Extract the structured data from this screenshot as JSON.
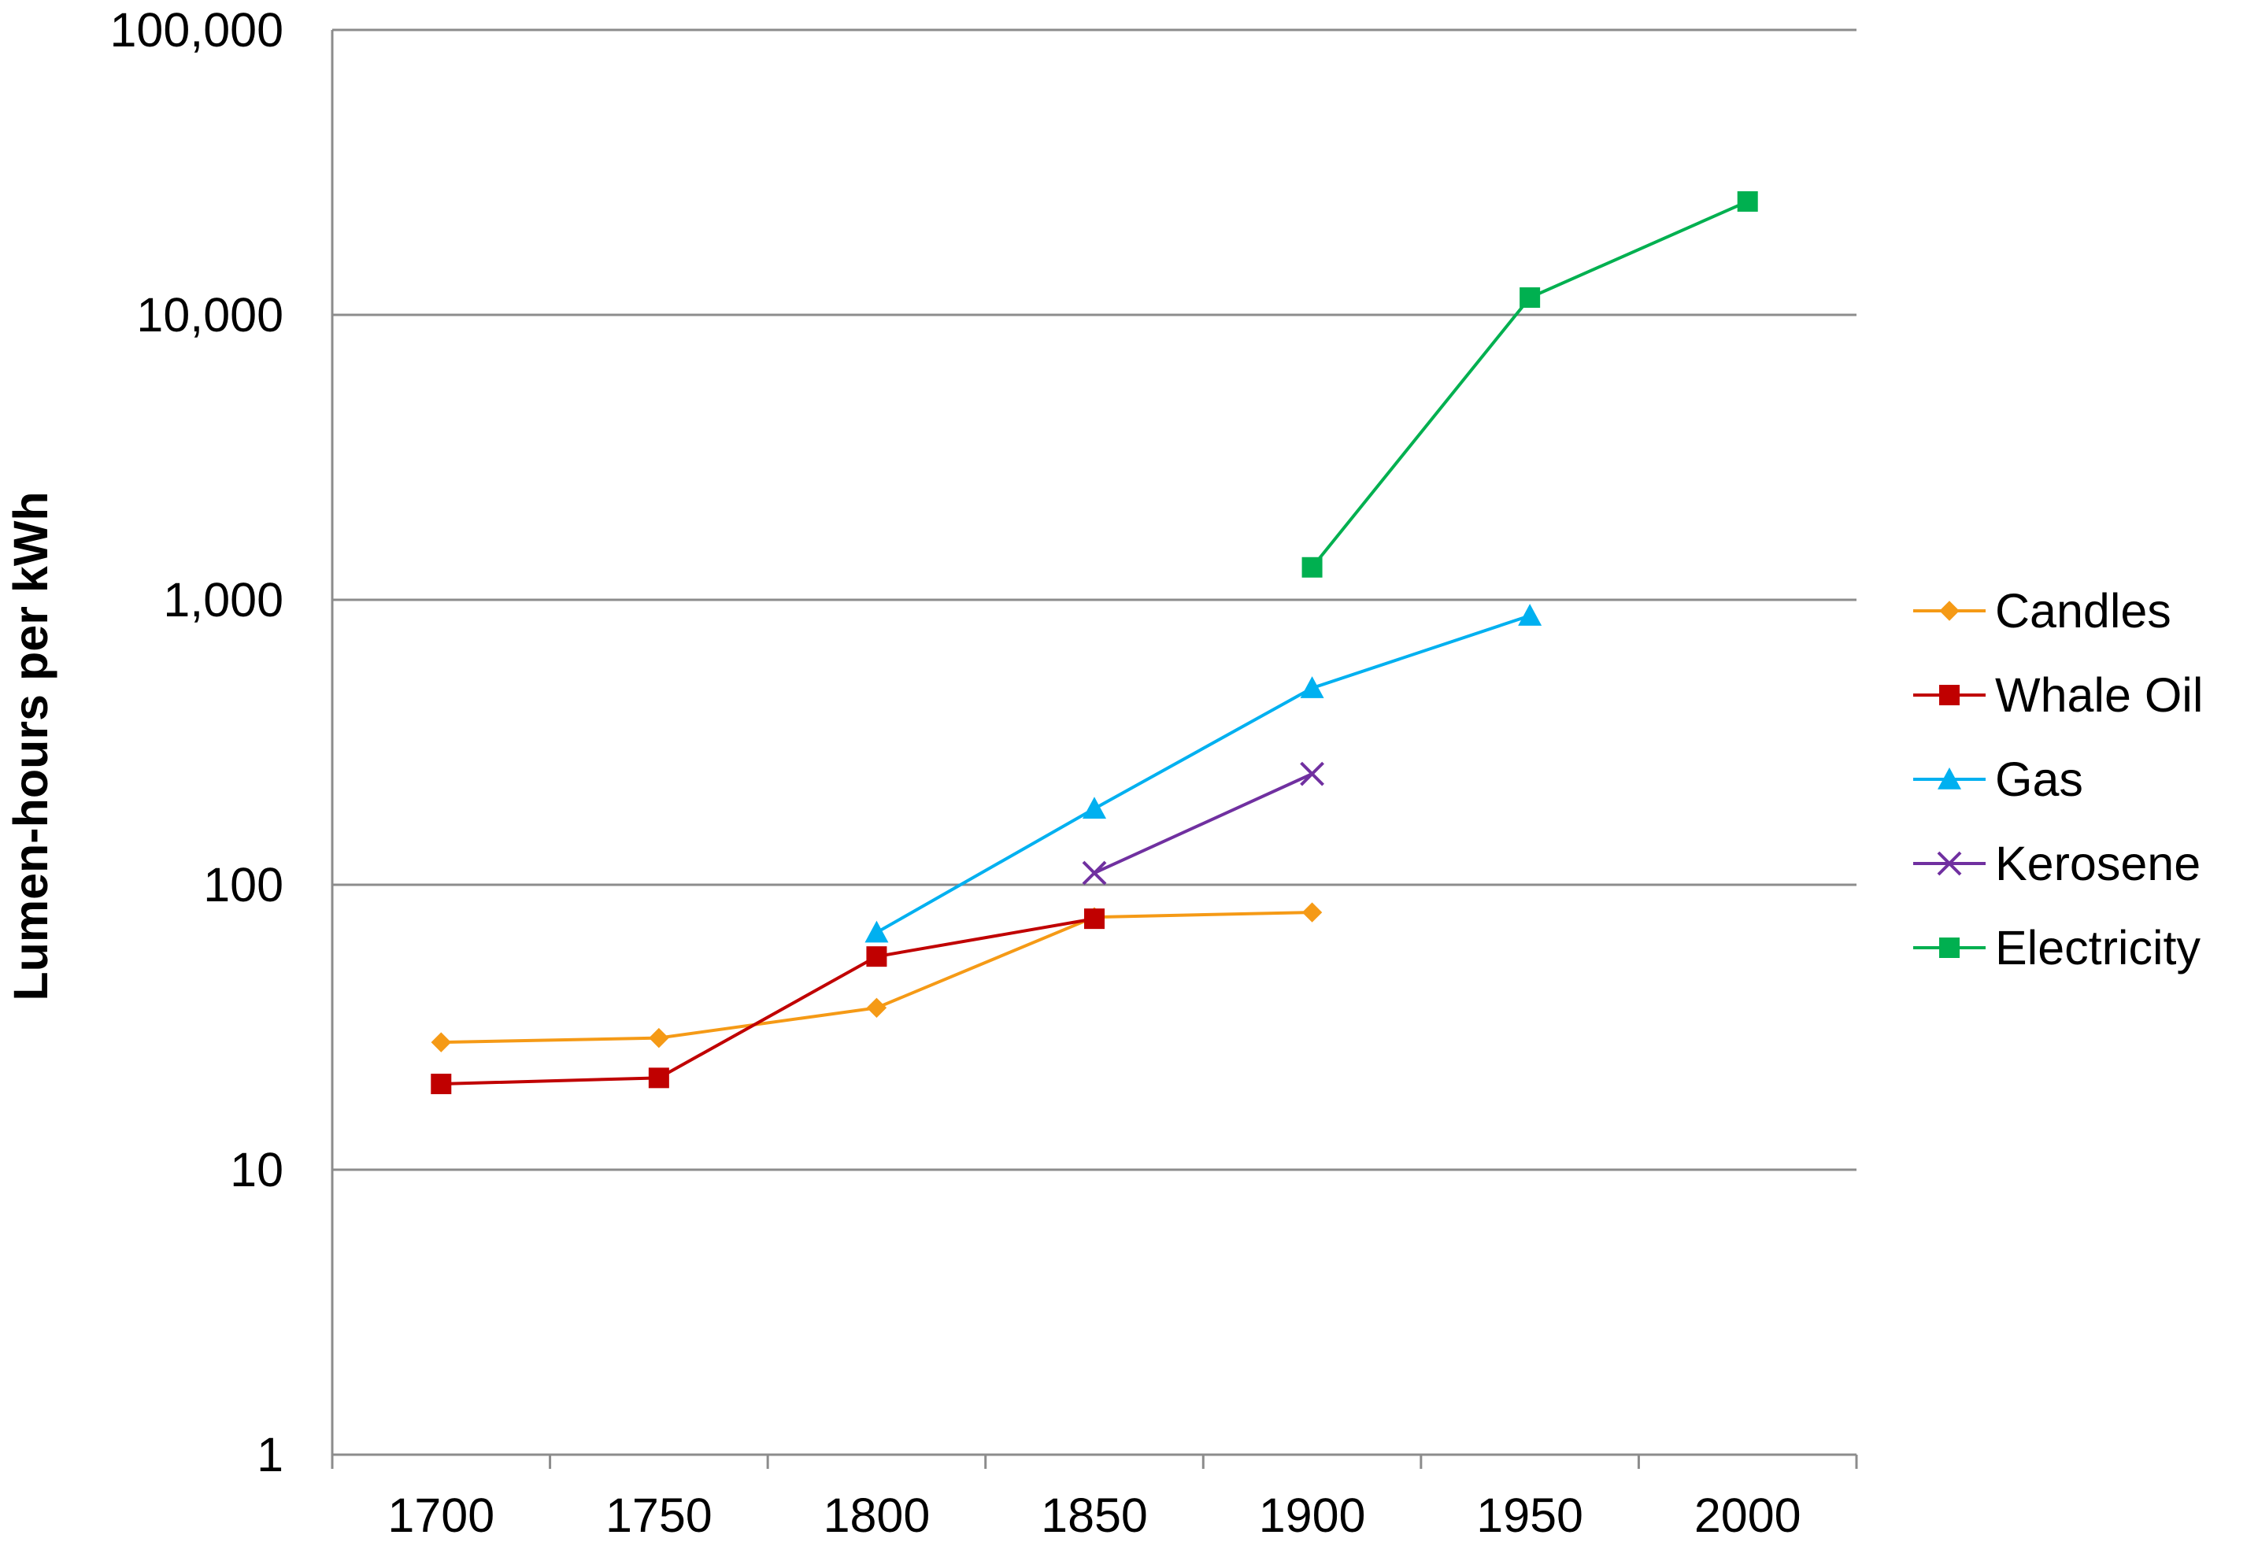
{
  "chart_data": {
    "type": "line",
    "ylabel": "Lumen-hours per kWh",
    "xlabel": "",
    "yscale": "log",
    "ylim": [
      1,
      100000
    ],
    "y_ticks": [
      "1",
      "10",
      "100",
      "1,000",
      "10,000",
      "100,000"
    ],
    "categories": [
      "1700",
      "1750",
      "1800",
      "1850",
      "1900",
      "1950",
      "2000"
    ],
    "grid": "horizontal",
    "legend_position": "right",
    "series": [
      {
        "name": "Candles",
        "color": "#F59A16",
        "marker": "diamond",
        "values": [
          28,
          29,
          37,
          77,
          80,
          null,
          null
        ]
      },
      {
        "name": "Whale Oil",
        "color": "#C00000",
        "marker": "square",
        "values": [
          20,
          21,
          56,
          76,
          null,
          null,
          null
        ]
      },
      {
        "name": "Gas",
        "color": "#00B0F0",
        "marker": "triangle",
        "values": [
          null,
          null,
          68,
          185,
          490,
          880,
          null
        ]
      },
      {
        "name": "Kerosene",
        "color": "#7030A0",
        "marker": "x",
        "values": [
          null,
          null,
          null,
          110,
          245,
          null,
          null
        ]
      },
      {
        "name": "Electricity",
        "color": "#00B050",
        "marker": "square",
        "values": [
          null,
          null,
          null,
          null,
          1300,
          11500,
          25000
        ]
      }
    ]
  }
}
